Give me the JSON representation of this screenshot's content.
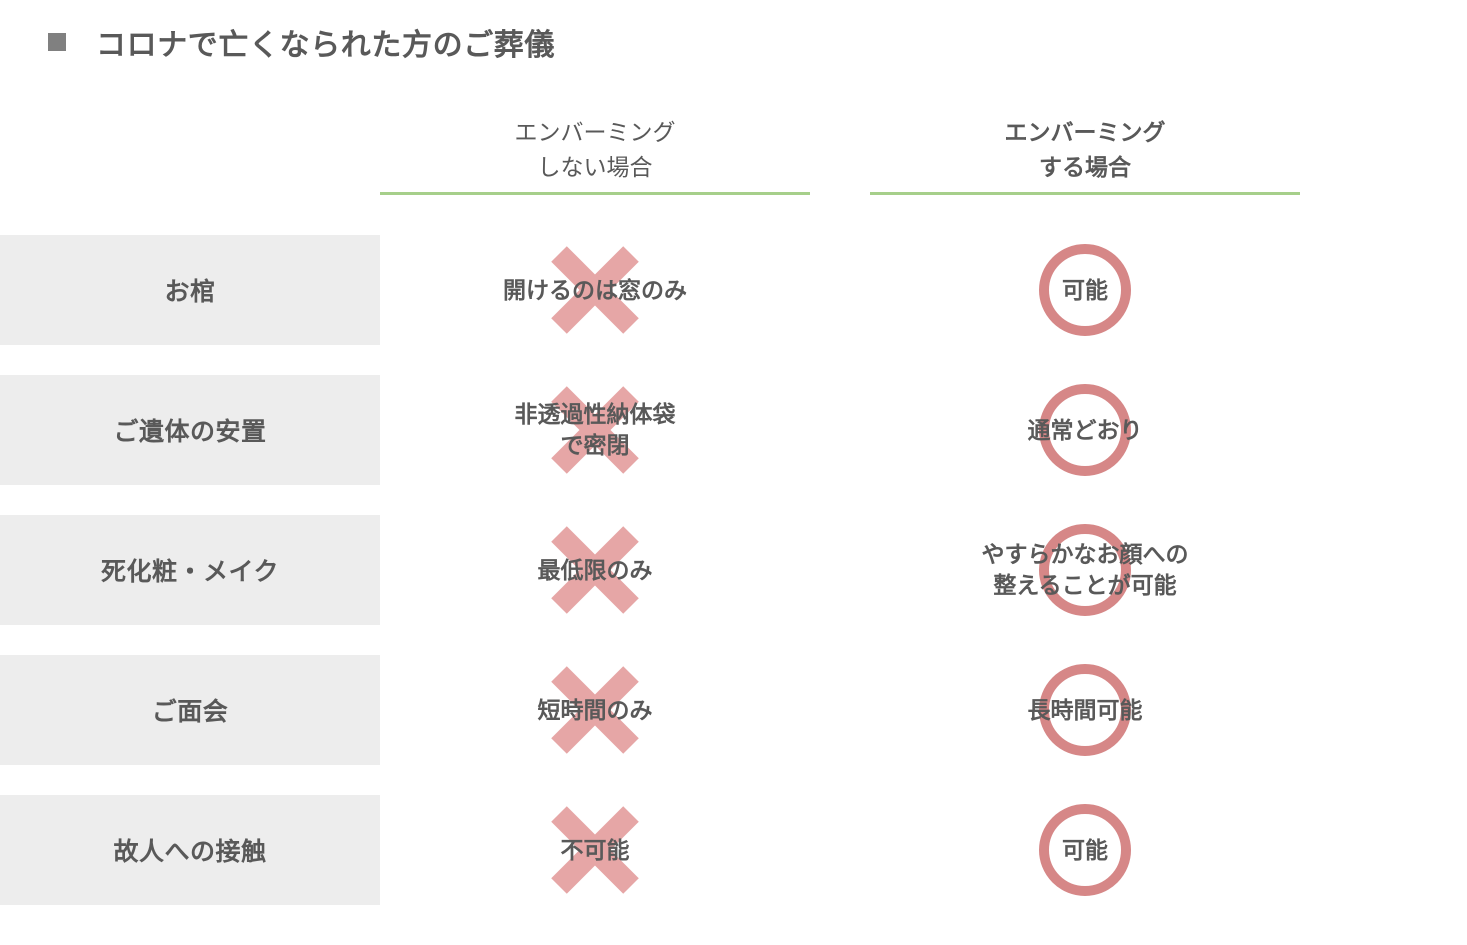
{
  "title": "コロナで亡くなられた方のご葬儀",
  "columns": {
    "without": "エンバーミング\nしない場合",
    "with": "エンバーミング\nする場合"
  },
  "rows": [
    {
      "label": "お棺",
      "without": "開けるのは窓のみ",
      "with": "可能"
    },
    {
      "label": "ご遺体の安置",
      "without": "非透過性納体袋\nで密閉",
      "with": "通常どおり"
    },
    {
      "label": "死化粧・メイク",
      "without": "最低限のみ",
      "with": "やすらかなお顔への\n整えることが可能"
    },
    {
      "label": "ご面会",
      "without": "短時間のみ",
      "with": "長時間可能"
    },
    {
      "label": "故人への接触",
      "without": "不可能",
      "with": "可能"
    }
  ],
  "style": {
    "cross_color": "#e6a6a6",
    "circle_color": "#d68787",
    "underline_color": "#a6cf8a",
    "row_label_bg": "#ededed",
    "text_color": "#595959",
    "header_text_color": "#808080",
    "bullet_color": "#808080",
    "mark_size": 96,
    "circle_stroke": 10,
    "cross_stroke": 22
  }
}
